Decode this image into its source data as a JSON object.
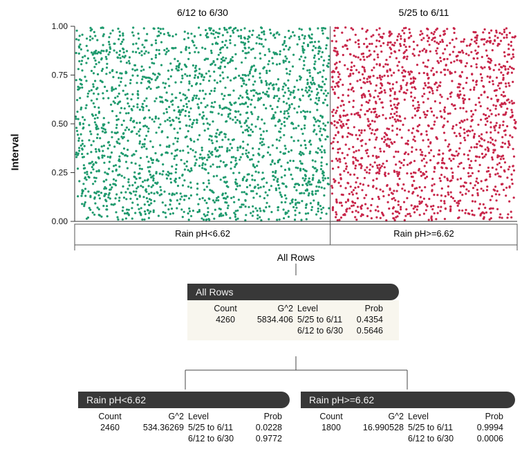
{
  "chart_data": {
    "type": "scatter",
    "ylabel": "Interval",
    "ylim": [
      0,
      1
    ],
    "yticks": [
      "0.00",
      "0.25",
      "0.50",
      "0.75",
      "1.00"
    ],
    "yticks_values": [
      0,
      0.25,
      0.5,
      0.75,
      1
    ],
    "panels": [
      {
        "label": "6/12 to 6/30",
        "color": "#1f9a6e",
        "share": 0.5646
      },
      {
        "label": "5/25 to 6/11",
        "color": "#c8264a",
        "share": 0.4354
      }
    ],
    "splits": [
      {
        "label": "Rain pH<6.62",
        "share": 0.5775
      },
      {
        "label": "Rain pH>=6.62",
        "share": 0.4225
      }
    ],
    "root_label": "All Rows",
    "grid": false
  },
  "tree": {
    "root": {
      "title": "All Rows",
      "headers": {
        "count": "Count",
        "g2": "G^2",
        "level": "Level",
        "prob": "Prob"
      },
      "count": "4260",
      "g2": "5834.406",
      "rows": [
        {
          "level": "5/25 to 6/11",
          "prob": "0.4354"
        },
        {
          "level": "6/12 to 6/30",
          "prob": "0.5646"
        }
      ]
    },
    "left": {
      "title": "Rain pH<6.62",
      "headers": {
        "count": "Count",
        "g2": "G^2",
        "level": "Level",
        "prob": "Prob"
      },
      "count": "2460",
      "g2": "534.36269",
      "rows": [
        {
          "level": "5/25 to 6/11",
          "prob": "0.0228"
        },
        {
          "level": "6/12 to 6/30",
          "prob": "0.9772"
        }
      ]
    },
    "right": {
      "title": "Rain pH>=6.62",
      "headers": {
        "count": "Count",
        "g2": "G^2",
        "level": "Level",
        "prob": "Prob"
      },
      "count": "1800",
      "g2": "16.990528",
      "rows": [
        {
          "level": "5/25 to 6/11",
          "prob": "0.9994"
        },
        {
          "level": "6/12 to 6/30",
          "prob": "0.0006"
        }
      ]
    }
  }
}
